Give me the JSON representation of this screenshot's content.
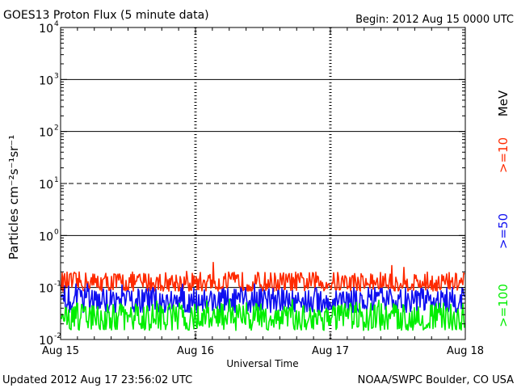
{
  "header": {
    "title": "GOES13 Proton Flux (5 minute data)",
    "begin": "Begin: 2012 Aug 15 0000 UTC"
  },
  "footer": {
    "updated": "Updated 2012 Aug 17 23:56:02 UTC",
    "credit": "NOAA/SWPC Boulder, CO USA"
  },
  "chart_data": {
    "type": "line",
    "title": "GOES13 Proton Flux (5 minute data)",
    "xlabel": "Universal Time",
    "ylabel": "Particles cm⁻²s⁻¹sr⁻¹",
    "y_scale": "log",
    "ylim": [
      0.01,
      10000
    ],
    "y_ticks": [
      {
        "value": 10000,
        "base": "10",
        "exp": "4"
      },
      {
        "value": 1000,
        "base": "10",
        "exp": "3"
      },
      {
        "value": 100,
        "base": "10",
        "exp": "2"
      },
      {
        "value": 10,
        "base": "10",
        "exp": "1"
      },
      {
        "value": 1,
        "base": "10",
        "exp": "0"
      },
      {
        "value": 0.1,
        "base": "10",
        "exp": "-1"
      },
      {
        "value": 0.01,
        "base": "10",
        "exp": "-2"
      }
    ],
    "threshold_lines": [
      {
        "value": 1000,
        "style": "solid"
      },
      {
        "value": 100,
        "style": "solid"
      },
      {
        "value": 10,
        "style": "dashed"
      },
      {
        "value": 1,
        "style": "solid"
      },
      {
        "value": 0.1,
        "style": "solid"
      }
    ],
    "x_ticks": [
      "Aug 15",
      "Aug 16",
      "Aug 17",
      "Aug 18"
    ],
    "xlim": [
      "2012-08-15",
      "2012-08-18"
    ],
    "legend": {
      "placement": "right",
      "unit": "MeV",
      "entries": [
        ">=10",
        ">=50",
        ">=100"
      ]
    },
    "series": [
      {
        "name": ">=10",
        "color": "#ff2a00",
        "typical": 0.11,
        "low": 0.085,
        "high": 0.2,
        "peak": 0.32
      },
      {
        "name": ">=50",
        "color": "#1010f0",
        "typical": 0.055,
        "low": 0.033,
        "high": 0.1,
        "peak": 0.12
      },
      {
        "name": ">=100",
        "color": "#00ee00",
        "typical": 0.025,
        "low": 0.015,
        "high": 0.05,
        "peak": 0.065
      }
    ]
  }
}
